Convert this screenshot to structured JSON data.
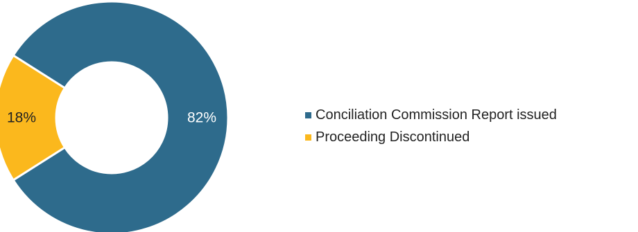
{
  "chart_data": {
    "type": "pie",
    "title": "",
    "slices": [
      {
        "label": "Conciliation Commission Report issued",
        "value": 82,
        "display": "82%",
        "color": "#2e6b8c",
        "label_color": "#ffffff"
      },
      {
        "label": "Proceeding Discontinued",
        "value": 18,
        "display": "18%",
        "color": "#fbb81d",
        "label_color": "#222222"
      }
    ],
    "legend_position": "right"
  }
}
